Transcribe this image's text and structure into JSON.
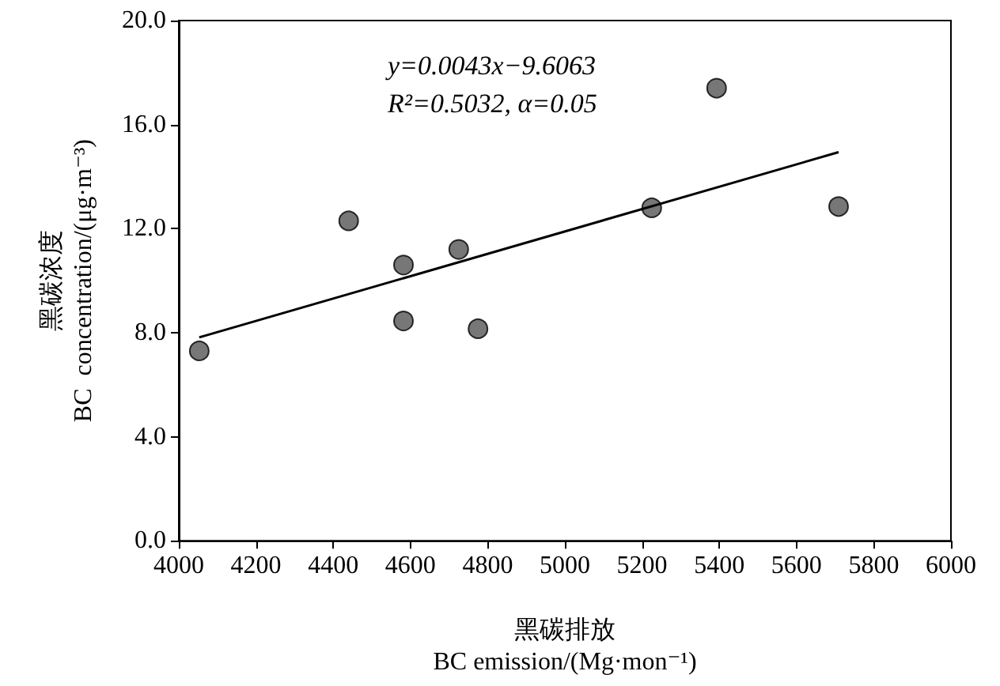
{
  "chart_data": {
    "type": "scatter",
    "xlabel": "黑碳排放\nBC emission/(Mg·mon⁻¹)",
    "ylabel": "黑碳浓度\nBC  concentration/(μg·m⁻³)",
    "annotations": [
      "y=0.0043x−9.6063",
      "R²=0.5032, α=0.05"
    ],
    "series": [
      {
        "color": "#555555",
        "marker": "circle",
        "x": [
          4053,
          4440,
          4582,
          4582,
          4725,
          4775,
          5225,
          5393,
          5709
        ],
        "values": [
          7.3,
          12.3,
          10.6,
          8.45,
          11.2,
          8.15,
          12.8,
          17.4,
          12.85
        ]
      },
      {
        "type": "line",
        "color": "#000000",
        "marker": "none",
        "line_style": "solid",
        "x": [
          4053,
          5709
        ],
        "values": [
          7.82,
          14.94
        ]
      }
    ],
    "xlim": [
      4000,
      6000
    ],
    "xticks": [
      4000,
      4200,
      4400,
      4600,
      4800,
      5000,
      5200,
      5400,
      5600,
      5800,
      6000
    ],
    "ylim": [
      0,
      20
    ],
    "yticks": [
      {
        "value": 0,
        "label": "0.0"
      },
      {
        "value": 4,
        "label": "4.0"
      },
      {
        "value": 8,
        "label": "8.0"
      },
      {
        "value": 12,
        "label": "12.0"
      },
      {
        "value": 16,
        "label": "16.0"
      },
      {
        "value": 20,
        "label": "20.0"
      }
    ],
    "grid": false
  }
}
